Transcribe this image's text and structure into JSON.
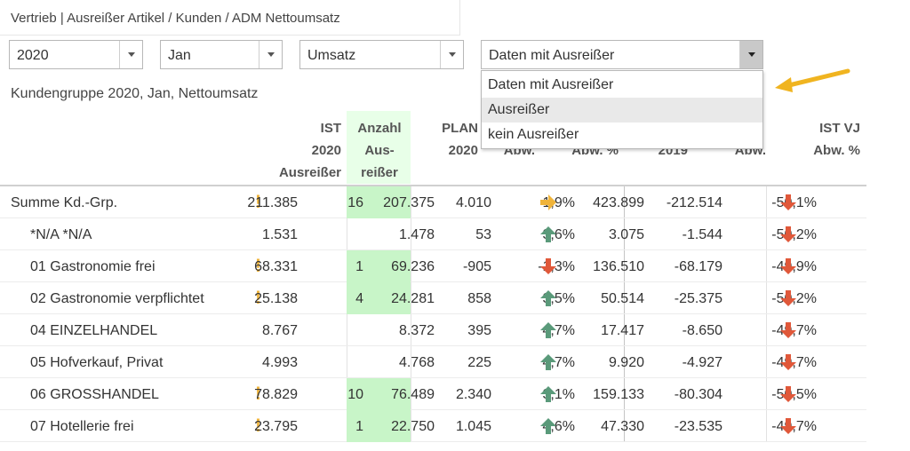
{
  "header": {
    "title": "Vertrieb | Ausreißer Artikel / Kunden / ADM Nettoumsatz"
  },
  "filters": {
    "year": "2020",
    "month": "Jan",
    "measure": "Umsatz",
    "outlier_mode": "Daten mit Ausreißer"
  },
  "dropdown_open": {
    "options": [
      "Daten mit Ausreißer",
      "Ausreißer",
      "kein Ausreißer"
    ],
    "highlighted": "Ausreißer"
  },
  "report": {
    "title": "Kundengruppe 2020, Jan, Nettoumsatz",
    "columns": {
      "ist": [
        "IST",
        "2020",
        "Ausreißer"
      ],
      "anzahl": [
        "Anzahl",
        "Aus-",
        "reißer"
      ],
      "plan": [
        "PLAN",
        "2020"
      ],
      "abw_partial": "Abw.",
      "abw_pct_partial": "Abw. %",
      "vj_partial": "2019",
      "abw_vj_partial": "Abw.",
      "ist_vj": [
        "IST VJ",
        "Abw. %"
      ]
    },
    "rows": [
      {
        "label": "Summe Kd.-Grp.",
        "excl": true,
        "ist": "211.385",
        "anzahl": "16",
        "plan": "207.375",
        "abw": "4.010",
        "plan_trend": "right",
        "abw_pct": "1,9%",
        "vj": "423.899",
        "abw_vj": "-212.514",
        "vj_trend": "down",
        "vj_pct": "-50,1%"
      },
      {
        "label": "*N/A *N/A",
        "excl": false,
        "ist": "1.531",
        "anzahl": "",
        "plan": "1.478",
        "abw": "53",
        "plan_trend": "up",
        "abw_pct": "3,6%",
        "vj": "3.075",
        "abw_vj": "-1.544",
        "vj_trend": "down",
        "vj_pct": "-50,2%"
      },
      {
        "label": "01 Gastronomie frei",
        "excl": true,
        "ist": "68.331",
        "anzahl": "1",
        "plan": "69.236",
        "abw": "-905",
        "plan_trend": "down",
        "abw_pct": "-1,3%",
        "vj": "136.510",
        "abw_vj": "-68.179",
        "vj_trend": "down",
        "vj_pct": "-49,9%"
      },
      {
        "label": "02 Gastronomie verpflichtet",
        "excl": true,
        "ist": "25.138",
        "anzahl": "4",
        "plan": "24.281",
        "abw": "858",
        "plan_trend": "up",
        "abw_pct": "3,5%",
        "vj": "50.514",
        "abw_vj": "-25.375",
        "vj_trend": "down",
        "vj_pct": "-50,2%"
      },
      {
        "label": "04 EINZELHANDEL",
        "excl": false,
        "ist": "8.767",
        "anzahl": "",
        "plan": "8.372",
        "abw": "395",
        "plan_trend": "up",
        "abw_pct": "4,7%",
        "vj": "17.417",
        "abw_vj": "-8.650",
        "vj_trend": "down",
        "vj_pct": "-49,7%"
      },
      {
        "label": "05 Hofverkauf, Privat",
        "excl": false,
        "ist": "4.993",
        "anzahl": "",
        "plan": "4.768",
        "abw": "225",
        "plan_trend": "up",
        "abw_pct": "4,7%",
        "vj": "9.920",
        "abw_vj": "-4.927",
        "vj_trend": "down",
        "vj_pct": "-49,7%"
      },
      {
        "label": "06 GROSSHANDEL",
        "excl": true,
        "ist": "78.829",
        "anzahl": "10",
        "plan": "76.489",
        "abw": "2.340",
        "plan_trend": "up",
        "abw_pct": "3,1%",
        "vj": "159.133",
        "abw_vj": "-80.304",
        "vj_trend": "down",
        "vj_pct": "-50,5%"
      },
      {
        "label": "07 Hotellerie frei",
        "excl": true,
        "ist": "23.795",
        "anzahl": "1",
        "plan": "22.750",
        "abw": "1.045",
        "plan_trend": "up",
        "abw_pct": "4,6%",
        "vj": "47.330",
        "abw_vj": "-23.535",
        "vj_trend": "down",
        "vj_pct": "-49,7%"
      }
    ],
    "icons": {
      "excl": "exclamation-icon",
      "up": "arrow-up-icon",
      "down": "arrow-down-icon",
      "right": "arrow-right-icon"
    },
    "colors": {
      "up": "#5a9a7a",
      "down": "#e0583a",
      "right": "#f0b43a",
      "excl": "#f0b43a",
      "outlier_cell": "#c8f5c8"
    }
  }
}
